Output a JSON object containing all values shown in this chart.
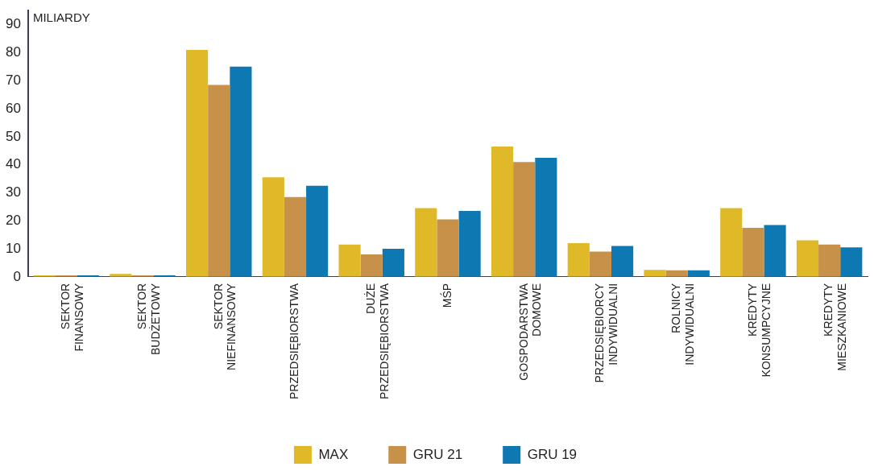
{
  "chart_data": {
    "type": "bar",
    "ylabel": "MILIARDY",
    "categories": [
      "SEKTOR\nFINANSOWY",
      "SEKTOR\nBUDŻETOWY",
      "SEKTOR\nNIEFINANSOWY",
      "PRZEDSIĘBIORSTWA",
      "DUŻE\nPRZEDSIĘBIORSTWA",
      "MŚP",
      "GOSPODARSTWA\nDOMOWE",
      "PRZEDSIĘBIORCY\nINDYWIDUALNI",
      "ROLNICY\nINDYWIDUALNI",
      "KREDYTY\nKONSUMPCYJNE",
      "KREDYTY\nMIESZKANIOWE"
    ],
    "series": [
      {
        "name": "MAX",
        "color": "#dfb928",
        "values": [
          0.5,
          1,
          81,
          35.5,
          11.5,
          24.5,
          46.5,
          12,
          2.5,
          24.5,
          13
        ]
      },
      {
        "name": "GRU 21",
        "color": "#c8914a",
        "values": [
          0.5,
          0.5,
          68.5,
          28.5,
          8,
          20.5,
          41,
          9,
          2.3,
          17.5,
          11.5
        ]
      },
      {
        "name": "GRU 19",
        "color": "#0e78b3",
        "values": [
          0.5,
          0.5,
          75,
          32.5,
          10,
          23.5,
          42.5,
          11,
          2.3,
          18.5,
          10.5
        ]
      }
    ],
    "ylim": [
      0,
      95
    ],
    "yticks": [
      0,
      10,
      20,
      30,
      40,
      50,
      60,
      70,
      80,
      90
    ],
    "grid": false,
    "legend": "bottom"
  }
}
